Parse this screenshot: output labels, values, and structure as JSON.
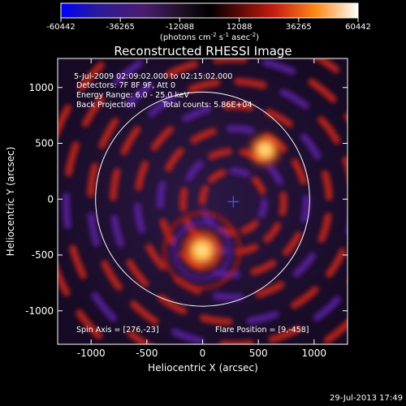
{
  "colorbar": {
    "ticks": [
      "-60442",
      "-36265",
      "-12088",
      "12088",
      "36265",
      "60442"
    ],
    "units_prefix": "(photons cm",
    "units_exp1": "-2",
    "units_mid": " s",
    "units_exp2": "-1",
    "units_mid2": " asec",
    "units_exp3": "-2",
    "units_suffix": ")"
  },
  "title": "Reconstructed RHESSI Image",
  "info": {
    "time_range": "5-Jul-2009 02:09:02.000 to 02:15:02.000",
    "detectors": "Detectors: 7F 8F 9F, Att 0",
    "energy": "Energy Range: 6.0 - 25.0 keV",
    "method": "Back Projection",
    "counts": "Total counts: 5.86E+04"
  },
  "footer": {
    "spin_axis": "Spin Axis = [276,-23]",
    "flare_position": "Flare Position = [9,-458]"
  },
  "axes": {
    "xlabel": "Heliocentric X (arcsec)",
    "ylabel": "Heliocentric Y (arcsec)",
    "xticks": [
      "-1000",
      "-500",
      "0",
      "500",
      "1000"
    ],
    "yticks": [
      "1000",
      "500",
      "0",
      "-500",
      "-1000"
    ],
    "xlim": [
      -1300,
      1300
    ],
    "ylim": [
      -1300,
      1260
    ]
  },
  "timestamp": "29-Jul-2013 17:49",
  "colors": {
    "background": "#000000",
    "negative": "#4b2a8a",
    "positive_low": "#cc2a1e",
    "positive_high": "#ffe070",
    "limb": "#ffffff",
    "cross": "#3a5aff"
  },
  "chart_data": {
    "type": "heatmap",
    "title": "Reconstructed RHESSI Image",
    "xlabel": "Heliocentric X (arcsec)",
    "ylabel": "Heliocentric Y (arcsec)",
    "xlim": [
      -1300,
      1300
    ],
    "ylim": [
      -1300,
      1260
    ],
    "color_range": [
      -60442,
      60442
    ],
    "colorbar_ticks": [
      -60442,
      -36265,
      -12088,
      12088,
      36265,
      60442
    ],
    "sources": [
      {
        "x": -5,
        "y": -460,
        "intensity": "max"
      },
      {
        "x": 560,
        "y": 440,
        "intensity": "high"
      }
    ],
    "spin_axis": [
      276,
      -23
    ],
    "flare_position": [
      9,
      -458
    ],
    "solar_radius_arcsec": 960
  }
}
